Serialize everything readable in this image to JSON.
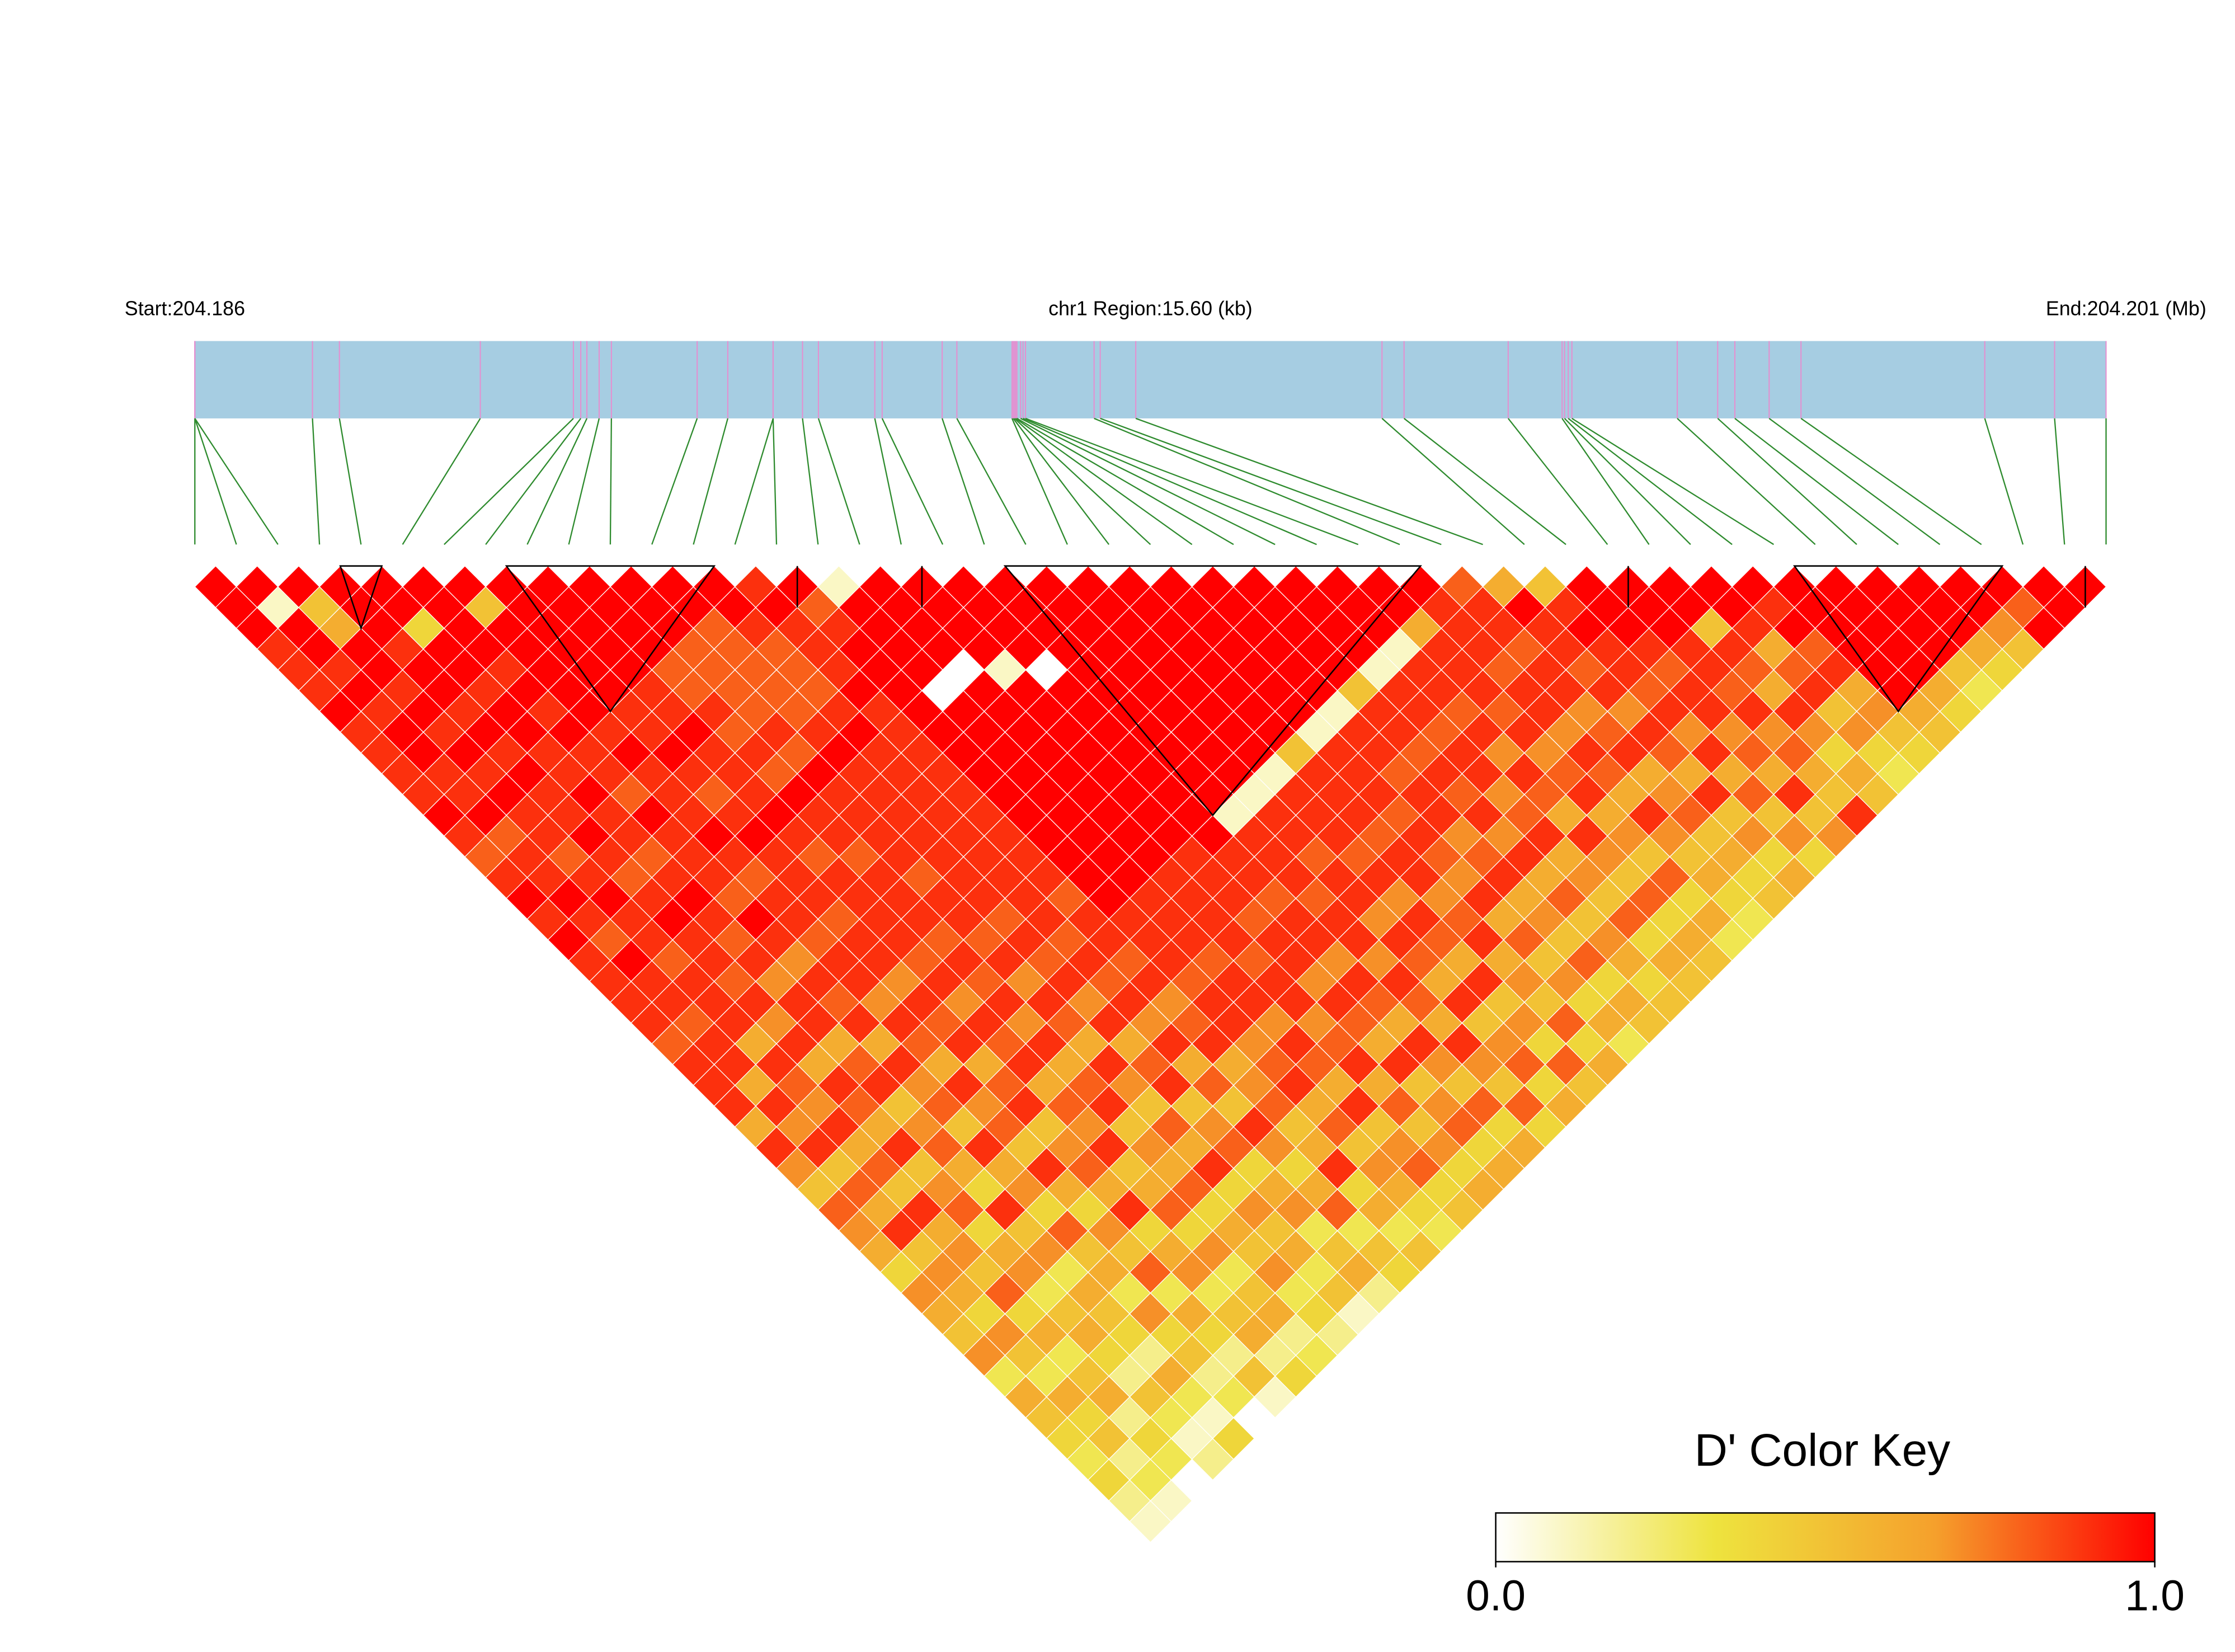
{
  "chart_data": {
    "type": "ld_heatmap",
    "start_label": "Start:204.186",
    "region_label": "chr1 Region:15.60 (kb)",
    "end_label": "End:204.201 (Mb)",
    "xlim": [
      0,
      15.6
    ],
    "positions_kb": [
      0,
      0,
      0,
      0.96,
      1.18,
      2.33,
      3.09,
      3.15,
      3.2,
      3.3,
      3.4,
      4.1,
      4.35,
      4.72,
      4.72,
      4.96,
      5.09,
      5.55,
      5.61,
      6.1,
      6.22,
      6.67,
      6.68,
      6.69,
      6.7,
      6.71,
      6.74,
      6.76,
      6.78,
      7.34,
      7.39,
      7.68,
      9.69,
      9.87,
      10.72,
      11.16,
      11.18,
      11.21,
      11.24,
      12.1,
      12.43,
      12.57,
      12.85,
      13.11,
      14.61,
      15.18,
      15.6
    ],
    "dprime": [
      [
        1,
        1,
        1,
        0.9,
        0.9,
        0.9,
        1,
        0.9,
        0.9,
        0.9,
        0.9,
        1,
        0.9,
        0.8,
        0.9,
        1,
        0.9,
        1,
        0.9,
        0.9,
        0.9,
        0.9,
        0.8,
        0.9,
        0.9,
        0.9,
        0.6,
        0.9,
        0.7,
        0.5,
        0.8,
        0.7,
        0.6,
        0.4,
        0.7,
        0.6,
        0.5,
        0.7,
        0.3,
        0.6,
        0.5,
        0.4,
        0.3,
        0.4,
        0.2,
        0.1
      ],
      [
        1,
        0.1,
        1,
        1,
        0.9,
        1,
        0.9,
        1,
        1,
        0.9,
        0.9,
        1,
        0.8,
        0.9,
        0.9,
        1,
        0.9,
        0.8,
        1,
        0.9,
        0.9,
        0.8,
        0.9,
        0.9,
        0.6,
        0.9,
        0.7,
        0.9,
        0.5,
        0.8,
        0.6,
        0.9,
        0.5,
        0.7,
        0.6,
        0.4,
        0.7,
        0.5,
        0.3,
        0.6,
        0.4,
        0.5,
        0.2,
        0.3,
        0.1
      ],
      [
        1,
        0.5,
        0.6,
        1,
        1,
        0.9,
        1,
        0.9,
        1,
        0.9,
        1,
        0.9,
        0.9,
        0.8,
        0.9,
        1,
        0.9,
        0.9,
        0.8,
        0.9,
        0.9,
        0.9,
        0.6,
        0.9,
        0.8,
        0.7,
        0.9,
        0.6,
        0.8,
        0.5,
        0.9,
        0.6,
        0.7,
        0.5,
        0.8,
        0.4,
        0.6,
        0.3,
        0.5,
        0.6,
        0.2,
        0.4,
        0.3,
        0
      ],
      [
        1,
        1,
        1,
        0.9,
        1,
        1,
        0.9,
        1,
        0.9,
        1,
        0.9,
        0.9,
        1,
        0.9,
        0.8,
        0.9,
        1,
        0.9,
        0.9,
        0.8,
        0.9,
        0.7,
        0.9,
        0.6,
        0.9,
        0.8,
        0.6,
        0.9,
        0.5,
        0.7,
        0.8,
        0.4,
        0.6,
        0.7,
        0.3,
        0.5,
        0.6,
        0.4,
        0.2,
        0.5,
        0.3,
        0.1,
        0.2
      ],
      [
        1,
        1,
        0.4,
        1,
        1,
        0.9,
        1,
        1,
        0.9,
        0.9,
        1,
        0.9,
        0.9,
        0.8,
        0.9,
        1,
        0.9,
        0.8,
        0.9,
        0.7,
        0.9,
        0.9,
        0.6,
        0.8,
        0.9,
        0.5,
        0.7,
        0.8,
        0.6,
        0.4,
        0.9,
        0.5,
        0.7,
        0.3,
        0.6,
        0.5,
        0.4,
        0.2,
        0.6,
        0.3,
        0.1,
        0.4
      ],
      [
        1,
        1,
        1,
        1,
        0.9,
        1,
        0.9,
        1,
        0.9,
        0.9,
        0.8,
        1,
        0.9,
        0.9,
        0.9,
        0.8,
        1,
        0.9,
        0.7,
        0.9,
        0.8,
        0.9,
        0.6,
        0.9,
        0.7,
        0.8,
        0.5,
        0.9,
        0.6,
        0.7,
        0.4,
        0.8,
        0.5,
        0.6,
        0.3,
        0.7,
        0.4,
        0.5,
        0.2,
        0.3,
        0
      ],
      [
        1,
        0.5,
        1,
        1,
        1,
        1,
        1,
        0.9,
        1,
        0.9,
        0.9,
        0.9,
        1,
        0.9,
        0.8,
        0.9,
        0.9,
        0.8,
        0.9,
        0.9,
        0.7,
        0.9,
        0.8,
        0.6,
        0.9,
        0.7,
        0.8,
        0.5,
        0.9,
        0.6,
        0.4,
        0.7,
        0.5,
        0.8,
        0.3,
        0.6,
        0.4,
        0.2,
        0.5,
        0.1
      ],
      [
        1,
        1,
        1,
        1,
        1,
        1,
        0.9,
        0.9,
        1,
        0.9,
        0.8,
        0.9,
        1,
        0.9,
        0.9,
        0.9,
        0.8,
        0.9,
        0.9,
        0.7,
        0.9,
        0.8,
        0.9,
        0.6,
        0.8,
        0.9,
        0.5,
        0.7,
        0.8,
        0.6,
        0.9,
        0.4,
        0.6,
        0.7,
        0.3,
        0.5,
        0.6,
        0.2,
        0.4
      ],
      [
        1,
        1,
        1,
        1,
        1,
        0.9,
        0.9,
        1,
        0.9,
        0.9,
        0.9,
        1,
        0.9,
        0.8,
        0.9,
        0.9,
        0.9,
        0.9,
        0.8,
        0.9,
        0.7,
        0.9,
        0.8,
        0.9,
        0.6,
        0.8,
        0.7,
        0.9,
        0.5,
        0.6,
        0.8,
        0.4,
        0.7,
        0.3,
        0.5,
        0.6,
        0.2,
        0.3
      ],
      [
        1,
        1,
        1,
        1,
        0.8,
        0.8,
        0.9,
        0.8,
        0.9,
        0.8,
        1,
        0.9,
        0.9,
        0.8,
        0.9,
        0.9,
        0.9,
        0.8,
        0.9,
        0.8,
        0.9,
        0.7,
        0.9,
        0.6,
        0.8,
        0.9,
        0.5,
        0.7,
        0.6,
        0.8,
        0.4,
        0.6,
        0.5,
        0.7,
        0.3,
        0.4,
        0.2
      ],
      [
        1,
        1,
        1,
        0.8,
        0.8,
        0.8,
        0.8,
        0.9,
        0.8,
        1,
        0.9,
        0.9,
        0.9,
        0.9,
        0.8,
        0.9,
        0.9,
        0.8,
        0.9,
        0.7,
        0.9,
        0.8,
        0.6,
        0.9,
        0.7,
        0.5,
        0.8,
        0.6,
        0.9,
        0.4,
        0.7,
        0.5,
        0.6,
        0.3,
        0.5,
        0.1
      ],
      [
        1,
        1,
        0.8,
        0.8,
        0.8,
        0.8,
        0.8,
        0.9,
        1,
        0.9,
        0.9,
        0.9,
        0.9,
        0.9,
        0.9,
        0.9,
        0.8,
        0.9,
        0.8,
        0.9,
        0.7,
        0.9,
        0.6,
        0.8,
        0.9,
        0.5,
        0.7,
        0.8,
        0.4,
        0.6,
        0.7,
        0.3,
        0.5,
        0.6,
        0.2
      ],
      [
        1,
        1,
        0.9,
        0.8,
        0.8,
        0.8,
        0.9,
        1,
        0.9,
        0.9,
        0.9,
        0.9,
        0.9,
        0.9,
        0.9,
        0.9,
        0.9,
        0.8,
        0.9,
        0.8,
        0.9,
        0.7,
        0.9,
        0.6,
        0.8,
        0.5,
        0.9,
        0.7,
        0.4,
        0.6,
        0.8,
        0.3,
        0.5,
        0.4
      ],
      [
        0.9,
        1,
        0.9,
        0.9,
        0.9,
        1,
        0.9,
        0.9,
        0.9,
        0.9,
        0.9,
        0.9,
        0.9,
        0.9,
        0.9,
        0.8,
        0.9,
        0.9,
        0.8,
        0.9,
        0.7,
        0.8,
        0.9,
        0.6,
        0.7,
        0.8,
        0.5,
        0.6,
        0.9,
        0.4,
        0.6,
        0.3,
        0.5
      ],
      [
        1,
        0.8,
        0.9,
        1,
        1,
        1,
        1,
        1,
        1,
        1,
        1,
        1,
        1,
        1,
        1,
        1,
        0.9,
        0.9,
        0.9,
        0.8,
        0.9,
        0.9,
        0.7,
        0.8,
        0.9,
        0.6,
        0.8,
        0.5,
        0.7,
        0.6,
        0.4,
        0.3
      ],
      [
        0.1,
        1,
        1,
        1,
        1,
        0,
        1,
        1,
        1,
        1,
        1,
        1,
        1,
        1,
        1,
        0.9,
        0.9,
        0.9,
        0.8,
        0.9,
        0.9,
        0.7,
        0.9,
        0.8,
        0.6,
        0.9,
        0.5,
        0.7,
        0.8,
        0.4,
        0.5
      ],
      [
        1,
        1,
        1,
        1,
        0,
        1,
        1,
        1,
        1,
        1,
        1,
        1,
        1,
        1,
        0.9,
        0.9,
        0.9,
        0.9,
        0.8,
        0.9,
        0.9,
        0.7,
        0.8,
        0.9,
        0.6,
        0.8,
        0.5,
        0.7,
        0.4,
        0.6
      ],
      [
        1,
        1,
        1,
        1,
        0.1,
        1,
        1,
        1,
        1,
        1,
        1,
        1,
        1,
        0.9,
        0.9,
        0.9,
        0.8,
        0.9,
        0.9,
        0.7,
        0.9,
        0.8,
        0.6,
        0.9,
        0.5,
        0.7,
        0.8,
        0.4,
        0.6
      ],
      [
        1,
        1,
        1,
        1,
        0,
        1,
        1,
        1,
        1,
        1,
        1,
        1,
        1,
        0.9,
        0.9,
        0.8,
        0.9,
        0.9,
        0.7,
        0.9,
        0.8,
        0.6,
        0.9,
        0.7,
        0.5,
        0.8,
        0.4,
        0.6
      ],
      [
        1,
        1,
        1,
        1,
        1,
        1,
        1,
        1,
        1,
        1,
        1,
        0.1,
        0.9,
        0.9,
        0.9,
        0.8,
        0.9,
        0.9,
        0.7,
        0.9,
        0.8,
        0.6,
        0.9,
        0.7,
        0.5,
        0.8,
        0.4
      ],
      [
        1,
        1,
        1,
        1,
        1,
        1,
        1,
        1,
        1,
        1,
        0.1,
        0.9,
        0.9,
        0.8,
        0.9,
        0.9,
        0.7,
        0.9,
        0.8,
        0.6,
        0.9,
        0.5,
        0.7,
        0.8,
        0.4,
        0.6
      ],
      [
        1,
        1,
        1,
        1,
        1,
        1,
        1,
        1,
        1,
        0.1,
        0.9,
        0.9,
        0.9,
        0.8,
        0.9,
        0.7,
        0.9,
        0.8,
        0.6,
        0.9,
        0.5,
        0.7,
        0.4,
        0.8,
        0.5
      ],
      [
        1,
        1,
        1,
        1,
        1,
        1,
        1,
        1,
        0.5,
        0.9,
        0.9,
        0.9,
        0.8,
        0.9,
        0.9,
        0.7,
        0.8,
        0.9,
        0.6,
        0.7,
        0.5,
        0.8,
        0.4,
        0.6
      ],
      [
        1,
        1,
        1,
        1,
        1,
        1,
        1,
        0.1,
        0.9,
        0.9,
        0.9,
        0.8,
        0.9,
        0.8,
        0.7,
        0.9,
        0.6,
        0.8,
        0.5,
        0.7,
        0.4,
        0.6,
        0.3
      ],
      [
        1,
        1,
        1,
        1,
        1,
        1,
        0.1,
        0.9,
        0.9,
        0.8,
        0.9,
        0.9,
        0.7,
        0.8,
        0.9,
        0.6,
        0.7,
        0.5,
        0.8,
        0.4,
        0.6,
        0.5
      ],
      [
        1,
        1,
        1,
        1,
        1,
        0.5,
        0.9,
        0.9,
        0.8,
        0.9,
        0.8,
        0.9,
        0.7,
        0.9,
        0.6,
        0.8,
        0.5,
        0.7,
        0.6,
        0.4,
        0.5
      ],
      [
        1,
        1,
        1,
        1,
        0.1,
        0.9,
        0.9,
        0.8,
        0.9,
        0.9,
        0.7,
        0.8,
        0.9,
        0.6,
        0.7,
        0.5,
        0.8,
        0.4,
        0.6,
        0.5
      ],
      [
        1,
        1,
        1,
        0.1,
        0.9,
        0.9,
        0.8,
        0.9,
        0.7,
        0.9,
        0.8,
        0.6,
        0.9,
        0.7,
        0.5,
        0.8,
        0.4,
        0.6,
        0.5
      ],
      [
        1,
        1,
        0.6,
        0.9,
        0.9,
        0.9,
        0.8,
        0.9,
        0.7,
        0.8,
        0.9,
        0.6,
        0.7,
        0.5,
        0.8,
        0.4,
        0.6,
        0.3
      ],
      [
        1,
        0.9,
        0.9,
        0.9,
        0.8,
        0.9,
        0.9,
        0.7,
        0.9,
        0.8,
        0.6,
        0.9,
        0.7,
        0.5,
        0.6,
        0.4,
        0.3
      ],
      [
        0.8,
        0.9,
        0.9,
        0.8,
        0.9,
        0.9,
        0.7,
        0.8,
        0.9,
        0.6,
        0.7,
        0.8,
        0.5,
        0.6,
        0.4,
        0.5
      ],
      [
        0.6,
        1,
        0.9,
        0.9,
        0.8,
        0.9,
        0.7,
        0.9,
        0.8,
        0.6,
        0.9,
        0.5,
        0.7,
        0.4,
        0.6
      ],
      [
        0.5,
        0.9,
        1,
        0.9,
        0.9,
        0.8,
        0.9,
        0.7,
        0.9,
        0.6,
        0.8,
        0.5,
        0.7,
        0.4
      ],
      [
        1,
        1,
        1,
        0.9,
        0.8,
        0.9,
        0.9,
        0.7,
        0.8,
        0.6,
        0.9,
        0.5,
        0.7
      ],
      [
        1,
        1,
        1,
        0.9,
        0.9,
        0.8,
        0.9,
        0.7,
        0.8,
        0.6,
        0.5,
        0.9
      ],
      [
        1,
        1,
        0.5,
        0.9,
        0.8,
        0.6,
        0.9,
        0.7,
        0.4,
        0.6,
        0.5
      ],
      [
        1,
        1,
        0.9,
        0.6,
        0.8,
        0.9,
        0.5,
        0.7,
        0.4,
        0.3
      ],
      [
        1,
        0.9,
        1,
        0.8,
        0.9,
        0.6,
        0.7,
        0.5,
        0.4
      ],
      [
        1,
        1,
        1,
        1,
        1,
        1,
        0.6,
        0.5
      ],
      [
        1,
        1,
        1,
        1,
        1,
        0.6,
        0.4
      ],
      [
        1,
        1,
        1,
        1,
        0.5,
        0.3
      ],
      [
        1,
        1,
        1,
        0.6,
        0.4
      ],
      [
        1,
        1,
        0.7,
        0.5
      ],
      [
        1,
        0.8,
        1
      ],
      [
        1,
        1
      ],
      [
        1
      ]
    ],
    "blocks": [
      [
        3,
        5
      ],
      [
        7,
        13
      ],
      [
        14,
        15
      ],
      [
        17,
        18
      ],
      [
        19,
        30
      ],
      [
        34,
        35
      ],
      [
        38,
        44
      ],
      [
        45,
        46
      ]
    ],
    "colorbar": {
      "title": "D' Color Key",
      "lim": [
        0,
        1
      ],
      "ticks": [
        {
          "value": 0,
          "label": "0.0"
        },
        {
          "value": 1,
          "label": "1.0"
        }
      ],
      "colors": [
        "#ffffff",
        "#eee33e",
        "#f5a02c",
        "#ff0000"
      ]
    },
    "bar_color": "#a6cde2",
    "snp_tick_color": "#e58fd0",
    "link_color": "#2e8b2e",
    "block_color": "#000000"
  }
}
